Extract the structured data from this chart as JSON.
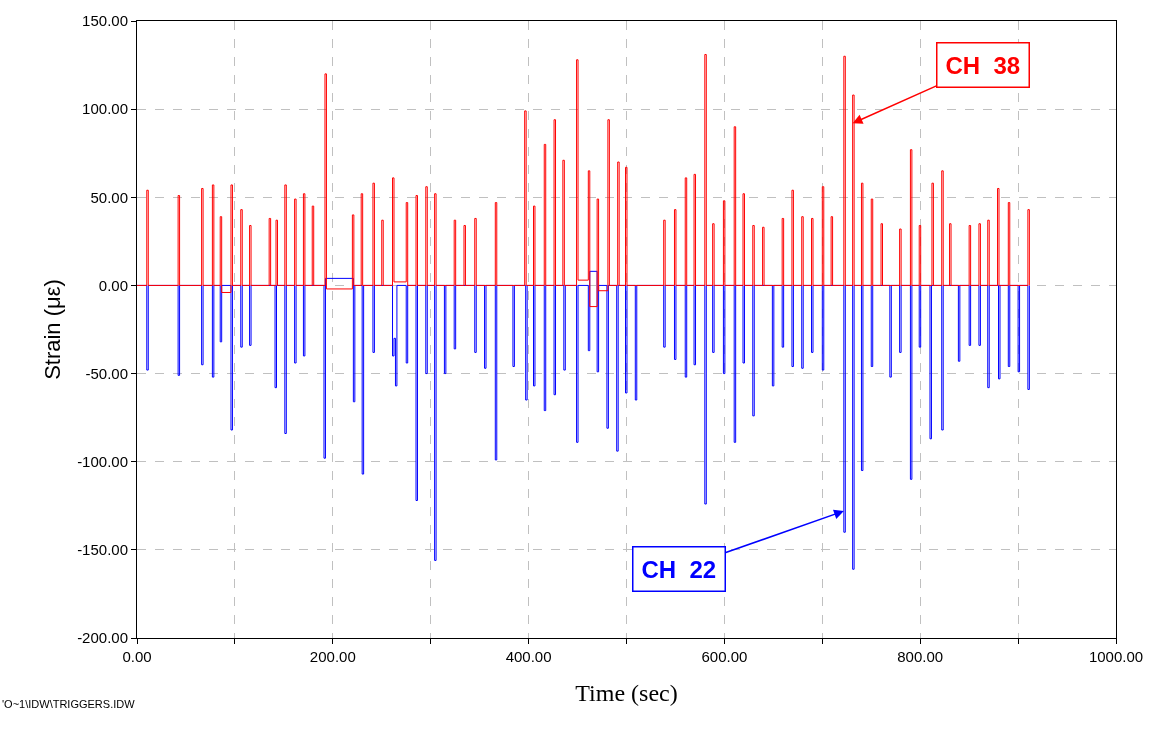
{
  "chart_data": {
    "type": "step",
    "xlabel": "Time (sec)",
    "ylabel": "Strain (με)",
    "xlim": [
      0,
      1000
    ],
    "xticks": [
      {
        "value": 0,
        "label": "0.00"
      },
      {
        "value": 100,
        "label": null
      },
      {
        "value": 200,
        "label": "200.00"
      },
      {
        "value": 300,
        "label": null
      },
      {
        "value": 400,
        "label": "400.00"
      },
      {
        "value": 500,
        "label": null
      },
      {
        "value": 600,
        "label": "600.00"
      },
      {
        "value": 700,
        "label": null
      },
      {
        "value": 800,
        "label": "800.00"
      },
      {
        "value": 900,
        "label": null
      },
      {
        "value": 1000,
        "label": "1000.00"
      }
    ],
    "ylim": [
      -200,
      150
    ],
    "yticks": [
      {
        "value": -200,
        "label": "-200.00"
      },
      {
        "value": -150,
        "label": "-150.00"
      },
      {
        "value": -100,
        "label": "-100.00"
      },
      {
        "value": -50,
        "label": "-50.00"
      },
      {
        "value": 0,
        "label": "0.00"
      },
      {
        "value": 50,
        "label": "50.00"
      },
      {
        "value": 100,
        "label": "100.00"
      },
      {
        "value": 150,
        "label": "150.00"
      }
    ],
    "grid": true,
    "marker": "none",
    "line_style": "solid",
    "series": [
      {
        "color": "#0000ff",
        "x": [
          0,
          10,
          11.5,
          42,
          43.5,
          66,
          67.5,
          77,
          78.5,
          85,
          86.5,
          96,
          97.5,
          106,
          107.5,
          115,
          116.5,
          141,
          142.5,
          151,
          152.5,
          161,
          162.5,
          170,
          171.5,
          191,
          192.5,
          221,
          222.5,
          230,
          231.5,
          241,
          242.5,
          261,
          262.5,
          264,
          265.5,
          275,
          276.5,
          285,
          286.5,
          295,
          296.5,
          304,
          305.5,
          314,
          315.5,
          324,
          325.5,
          345,
          346.5,
          355,
          356.5,
          366,
          367.5,
          384,
          385.5,
          397,
          398.5,
          405,
          406.5,
          416,
          417.5,
          426,
          427.5,
          436,
          437.5,
          449,
          450.5,
          461,
          462.5,
          470,
          471.5,
          480,
          481.5,
          490,
          491.5,
          499,
          500.5,
          509,
          510.5,
          538,
          539.5,
          549,
          550.5,
          560,
          561.5,
          569,
          570.5,
          580,
          581.5,
          588,
          589.5,
          599,
          600.5,
          610,
          611.5,
          619,
          620.5,
          629,
          630.5,
          649,
          650.5,
          659,
          660.5,
          669,
          670.5,
          679,
          680.5,
          689,
          690.5,
          700,
          701.5,
          722,
          723.5,
          731,
          732.5,
          740,
          741.5,
          750,
          751.5,
          769,
          770.5,
          779,
          780.5,
          790,
          791.5,
          799,
          800.5,
          810,
          811.5,
          822,
          823.5,
          839,
          840.5,
          850,
          851.5,
          860,
          861.5,
          869,
          870.5,
          880,
          881.5,
          890,
          891.5,
          900,
          901.5,
          910,
          911.5
        ],
        "values": [
          0,
          -48,
          0,
          -51,
          0,
          -45,
          0,
          -52,
          0,
          -32,
          0,
          -82,
          0,
          -35,
          0,
          -34,
          0,
          -58,
          0,
          -84,
          0,
          -44,
          0,
          -40,
          0,
          -98,
          4,
          -66,
          0,
          -107,
          0,
          -38,
          0,
          -40,
          -30,
          -57,
          0,
          -44,
          0,
          -122,
          0,
          -50,
          0,
          -156,
          0,
          -50,
          0,
          -36,
          0,
          -38,
          0,
          -47,
          0,
          -99,
          0,
          -46,
          0,
          -65,
          0,
          -57,
          0,
          -71,
          0,
          -62,
          0,
          -48,
          0,
          -89,
          0,
          -37,
          8,
          -49,
          0,
          -81,
          0,
          -94,
          0,
          -61,
          0,
          -65,
          0,
          -35,
          0,
          -42,
          0,
          -52,
          0,
          -45,
          0,
          -124,
          0,
          -38,
          0,
          -50,
          0,
          -89,
          0,
          -44,
          0,
          -74,
          0,
          -57,
          0,
          -35,
          0,
          -46,
          0,
          -47,
          0,
          -38,
          0,
          -48,
          0,
          -140,
          0,
          -161,
          0,
          -105,
          0,
          -46,
          0,
          -52,
          0,
          -38,
          0,
          -110,
          0,
          -35,
          0,
          -87,
          0,
          -82,
          0,
          -43,
          0,
          -34,
          0,
          -34,
          0,
          -58,
          0,
          -53,
          0,
          -46,
          0,
          -49,
          0,
          -59,
          0
        ]
      },
      {
        "color": "#ff0000",
        "x": [
          0,
          10,
          11.5,
          42,
          43.5,
          66,
          67.5,
          77,
          78.5,
          85,
          86.5,
          96,
          97.5,
          106,
          107.5,
          115,
          116.5,
          135,
          136.5,
          142,
          143.5,
          151,
          152.5,
          161,
          162.5,
          170,
          171.5,
          179,
          180.5,
          192,
          193.5,
          220,
          221.5,
          229,
          230.5,
          241,
          242.5,
          250,
          251.5,
          261,
          262.5,
          275,
          276.5,
          285,
          286.5,
          295,
          296.5,
          304,
          305.5,
          324,
          325.5,
          334,
          335.5,
          345,
          346.5,
          366,
          367.5,
          396,
          397.5,
          405,
          406.5,
          416,
          417.5,
          426,
          427.5,
          435,
          436.5,
          449,
          450.5,
          461,
          462.5,
          470,
          471.5,
          481,
          482.5,
          491,
          492.5,
          499,
          500.5,
          538,
          539.5,
          549,
          550.5,
          560,
          561.5,
          569,
          570.5,
          580,
          581.5,
          588,
          589.5,
          599,
          600.5,
          610,
          611.5,
          619,
          620.5,
          629,
          630.5,
          639,
          640.5,
          659,
          660.5,
          669,
          670.5,
          679,
          680.5,
          689,
          690.5,
          700,
          701.5,
          709,
          710.5,
          722,
          723.5,
          731,
          732.5,
          740,
          741.5,
          750,
          751.5,
          760,
          761.5,
          779,
          780.5,
          790,
          791.5,
          799,
          800.5,
          812,
          813.5,
          822,
          823.5,
          830,
          831.5,
          850,
          851.5,
          860,
          861.5,
          869,
          870.5,
          879,
          880.5,
          890,
          891.5,
          910,
          911.5
        ],
        "values": [
          0,
          54,
          0,
          51,
          0,
          55,
          0,
          57,
          0,
          39,
          -4,
          57,
          0,
          43,
          0,
          34,
          0,
          38,
          0,
          37,
          0,
          57,
          0,
          49,
          0,
          52,
          0,
          45,
          0,
          120,
          -2,
          40,
          0,
          52,
          0,
          58,
          0,
          37,
          0,
          61,
          2,
          47,
          0,
          51,
          0,
          56,
          0,
          52,
          0,
          37,
          0,
          34,
          0,
          38,
          0,
          47,
          0,
          99,
          0,
          45,
          0,
          80,
          0,
          94,
          0,
          71,
          0,
          128,
          3,
          65,
          -12,
          49,
          -3,
          94,
          0,
          70,
          0,
          67,
          0,
          37,
          0,
          43,
          0,
          61,
          0,
          63,
          0,
          131,
          0,
          35,
          0,
          48,
          0,
          90,
          0,
          52,
          0,
          34,
          0,
          33,
          0,
          38,
          0,
          54,
          0,
          39,
          0,
          38,
          0,
          56,
          0,
          39,
          0,
          130,
          0,
          108,
          0,
          58,
          0,
          49,
          0,
          35,
          0,
          32,
          0,
          77,
          0,
          34,
          0,
          58,
          0,
          65,
          0,
          35,
          0,
          34,
          0,
          35,
          0,
          37,
          0,
          55,
          0,
          47,
          0,
          43,
          0
        ]
      }
    ],
    "annotations": [
      {
        "text": "CH  38",
        "x": 731,
        "y": 92
      },
      {
        "text": "CH  22",
        "x": 722,
        "y": -128
      },
      "'O~1\\IDW\\TRIGGERS.IDW"
    ]
  }
}
